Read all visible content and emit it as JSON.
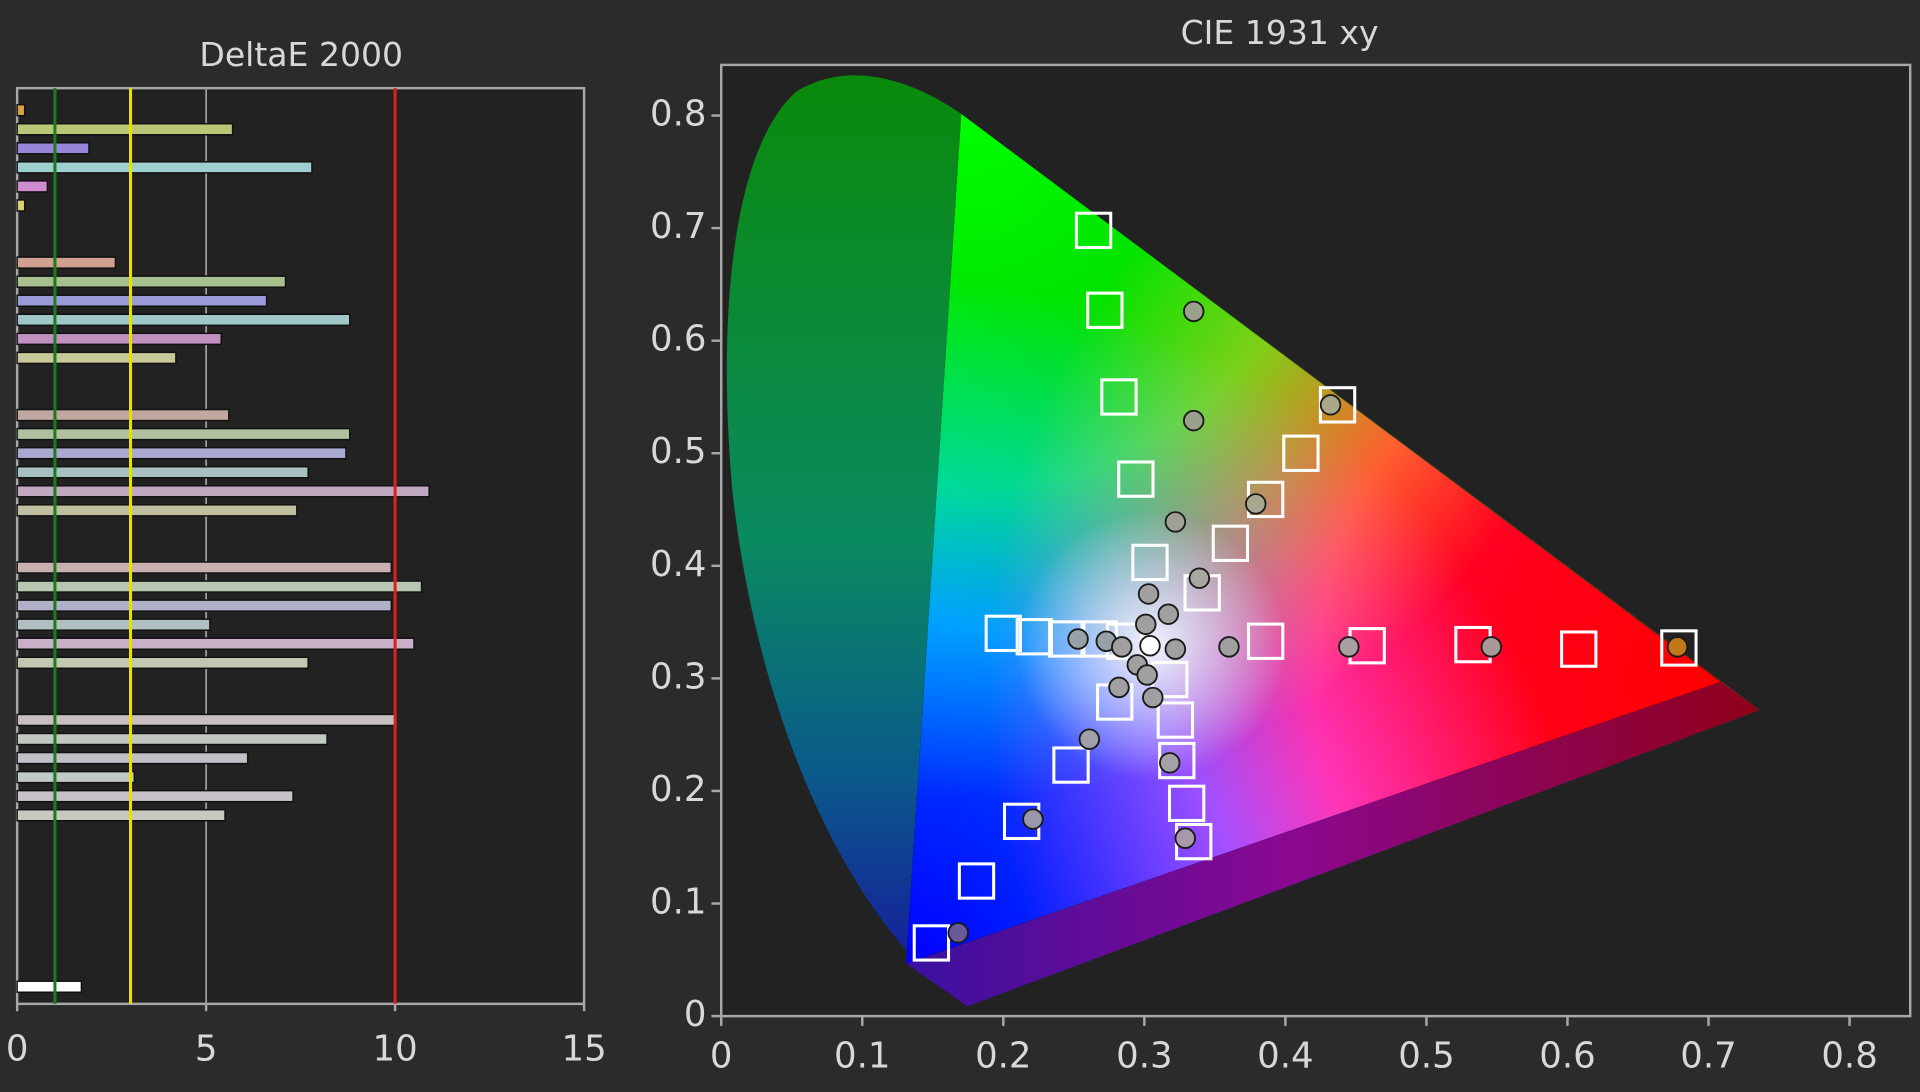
{
  "chart_data": [
    {
      "type": "bar",
      "orientation": "horizontal",
      "title": "DeltaE 2000",
      "categories": [
        null,
        null,
        null,
        null,
        null,
        null,
        null,
        null,
        null,
        null,
        null,
        null,
        null,
        null,
        null,
        null,
        null,
        null,
        null,
        null,
        null,
        null,
        null,
        null,
        null,
        null,
        null,
        null,
        null,
        null,
        null,
        null,
        null,
        null,
        null,
        null,
        null,
        null,
        null,
        null,
        null,
        null,
        null,
        null,
        null,
        null,
        null
      ],
      "values": [
        0.2,
        5.7,
        1.9,
        7.8,
        0.8,
        0.2,
        null,
        null,
        2.6,
        7.1,
        6.6,
        8.8,
        5.4,
        4.2,
        null,
        null,
        5.6,
        8.8,
        8.7,
        7.7,
        10.9,
        7.4,
        null,
        null,
        9.9,
        10.7,
        9.9,
        5.1,
        10.5,
        7.7,
        null,
        null,
        10.0,
        8.2,
        6.1,
        3.1,
        7.3,
        5.5,
        null,
        null,
        null,
        null,
        null,
        null,
        null,
        null,
        1.7
      ],
      "colors": [
        "#d9a040",
        "#b8c878",
        "#9a86d8",
        "#9fd0d0",
        "#d08ad0",
        "#d8d070",
        null,
        null,
        "#d0a090",
        "#a8c090",
        "#9a9ad8",
        "#a0c8c8",
        "#c090c0",
        "#c8c898",
        null,
        null,
        "#c0a8a0",
        "#b0c0a0",
        "#a8a8d0",
        "#a8c0c0",
        "#c0a8c0",
        "#c0c0a0",
        null,
        null,
        "#c8b0b0",
        "#b8c8b0",
        "#b0b0c8",
        "#b0c0c0",
        "#c8b0c8",
        "#c0c8b0",
        null,
        null,
        "#c8c0c0",
        "#c0c8c0",
        "#c0c0c8",
        "#c0c8c8",
        "#c8c0c8",
        "#c8c8c0",
        null,
        null,
        null,
        null,
        null,
        null,
        null,
        null,
        "#ffffff"
      ],
      "xlim": [
        0,
        15
      ],
      "xticks": [
        0,
        5,
        10,
        15
      ],
      "grid": true,
      "reference_lines": [
        {
          "value": 1,
          "color": "#1f7a1f"
        },
        {
          "value": 3,
          "color": "#e8e000"
        },
        {
          "value": 10,
          "color": "#e02020"
        }
      ]
    },
    {
      "type": "scatter",
      "title": "CIE 1931 xy",
      "xlim": [
        0,
        0.843
      ],
      "ylim": [
        0,
        0.845
      ],
      "xticks": [
        0,
        0.1,
        0.2,
        0.3,
        0.4,
        0.5,
        0.6,
        0.7,
        0.8
      ],
      "yticks": [
        0,
        0.1,
        0.2,
        0.3,
        0.4,
        0.5,
        0.6,
        0.7,
        0.8
      ],
      "series": [
        {
          "marker": "square",
          "color": "#ffffff",
          "x": [
            0.264,
            0.272,
            0.282,
            0.294,
            0.304,
            0.437,
            0.411,
            0.386,
            0.361,
            0.341,
            0.679,
            0.608,
            0.533,
            0.458,
            0.386,
            0.2,
            0.222,
            0.245,
            0.268,
            0.286,
            0.149,
            0.181,
            0.213,
            0.248,
            0.279,
            0.335,
            0.33,
            0.323,
            0.322,
            0.318
          ],
          "y": [
            0.698,
            0.627,
            0.55,
            0.477,
            0.403,
            0.543,
            0.5,
            0.459,
            0.42,
            0.376,
            0.327,
            0.326,
            0.33,
            0.329,
            0.333,
            0.34,
            0.337,
            0.335,
            0.335,
            0.333,
            0.065,
            0.12,
            0.173,
            0.223,
            0.279,
            0.155,
            0.189,
            0.227,
            0.263,
            0.299
          ]
        },
        {
          "marker": "circle",
          "color": "#a0a0a0",
          "x": [
            0.335,
            0.335,
            0.322,
            0.303,
            0.301,
            0.432,
            0.379,
            0.339,
            0.317,
            0.678,
            0.546,
            0.445,
            0.36,
            0.322,
            0.253,
            0.273,
            0.284,
            0.168,
            0.221,
            0.261,
            0.282,
            0.295,
            0.329,
            0.318,
            0.306,
            0.302,
            0.304
          ],
          "y": [
            0.626,
            0.529,
            0.439,
            0.375,
            0.348,
            0.543,
            0.455,
            0.389,
            0.357,
            0.328,
            0.328,
            0.328,
            0.328,
            0.326,
            0.335,
            0.333,
            0.328,
            0.074,
            0.175,
            0.246,
            0.292,
            0.312,
            0.158,
            0.225,
            0.283,
            0.303,
            0.329
          ],
          "colors": [
            "#9aa08a",
            "#9aa08a",
            "#a0a098",
            "#a0a0a0",
            "#a0a0a0",
            "#a8a888",
            "#a8a890",
            "#a8a8a0",
            "#a0a0a0",
            "#c07818",
            "#a89898",
            "#a8a0a0",
            "#a0a0a0",
            "#a0a0a0",
            "#98a0a8",
            "#98a0a8",
            "#a0a0a0",
            "#6a5a9a",
            "#9898a8",
            "#a0a0a8",
            "#a0a0a0",
            "#a0a0a0",
            "#a898a8",
            "#a8a0a8",
            "#a0a0a0",
            "#a0a0a0",
            "#ffffff"
          ]
        }
      ]
    }
  ]
}
